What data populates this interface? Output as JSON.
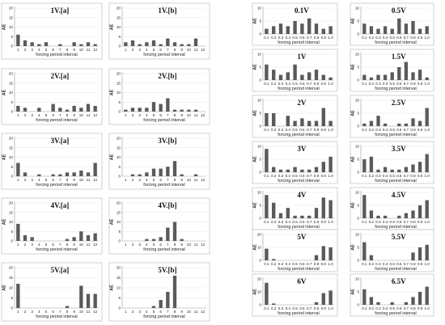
{
  "figure": {
    "left_group": {
      "xlabel": "forcing period interval",
      "ylabel": "AE",
      "yticks": [
        0,
        5,
        10,
        15,
        20
      ],
      "categories": [
        "1",
        "2",
        "3",
        "4",
        "5",
        "6",
        "7",
        "8",
        "9",
        "10",
        "11",
        "12"
      ]
    },
    "right_group": {
      "xlabel": "forcing period interval",
      "ylabel": "AE",
      "categories": [
        "0.1",
        "0.2",
        "0.3",
        "0.4",
        "0.5",
        "0.6",
        "0.7",
        "0.8",
        "0.9",
        "1.0"
      ]
    }
  },
  "chart_data": [
    {
      "type": "bar",
      "title": "1V.[a]",
      "ylim": [
        0,
        20
      ],
      "yticks": [
        "0",
        "5",
        "10",
        "15",
        "20"
      ],
      "categories": [
        "1",
        "2",
        "3",
        "4",
        "5",
        "6",
        "7",
        "8",
        "9",
        "10",
        "11",
        "12"
      ],
      "values": [
        6,
        3,
        2,
        1,
        2,
        0,
        1,
        0,
        2,
        1,
        2,
        1
      ]
    },
    {
      "type": "bar",
      "title": "2V.[a]",
      "ylim": [
        0,
        20
      ],
      "yticks": [
        "0",
        "5",
        "10",
        "15",
        "20"
      ],
      "categories": [
        "1",
        "2",
        "3",
        "4",
        "5",
        "6",
        "7",
        "8",
        "9",
        "10",
        "11",
        "12"
      ],
      "values": [
        3,
        2,
        0,
        2,
        0,
        4,
        2,
        1,
        3,
        2,
        4,
        3
      ]
    },
    {
      "type": "bar",
      "title": "3V.[a]",
      "ylim": [
        0,
        20
      ],
      "yticks": [
        "0",
        "5",
        "10",
        "15",
        "20"
      ],
      "categories": [
        "1",
        "2",
        "3",
        "4",
        "5",
        "6",
        "7",
        "8",
        "9",
        "10",
        "11",
        "12"
      ],
      "values": [
        7,
        2,
        0,
        1,
        0,
        1,
        1,
        2,
        2,
        3,
        2,
        7
      ]
    },
    {
      "type": "bar",
      "title": "4V.[a]",
      "ylim": [
        0,
        20
      ],
      "yticks": [
        "0",
        "5",
        "10",
        "15",
        "20"
      ],
      "categories": [
        "1",
        "2",
        "3",
        "4",
        "5",
        "6",
        "7",
        "8",
        "9",
        "10",
        "11",
        "12"
      ],
      "values": [
        9,
        3,
        2,
        0,
        0,
        0,
        0,
        1,
        2,
        5,
        3,
        4
      ]
    },
    {
      "type": "bar",
      "title": "5V.[a]",
      "ylim": [
        0,
        20
      ],
      "yticks": [
        "0",
        "5",
        "10",
        "15",
        "20"
      ],
      "categories": [
        "1",
        "2",
        "3",
        "4",
        "5",
        "6",
        "7",
        "8",
        "9",
        "10",
        "11",
        "12"
      ],
      "values": [
        12,
        0,
        0,
        0,
        0,
        0,
        0,
        1,
        0,
        11,
        7,
        7
      ]
    },
    {
      "type": "bar",
      "title": "1V.[b]",
      "ylim": [
        0,
        20
      ],
      "yticks": [
        "0",
        "5",
        "10",
        "15",
        "20"
      ],
      "categories": [
        "1",
        "2",
        "3",
        "4",
        "5",
        "6",
        "7",
        "8",
        "9",
        "10",
        "11",
        "12"
      ],
      "values": [
        2,
        3,
        1,
        2,
        3,
        1,
        4,
        2,
        1,
        1,
        4,
        0
      ]
    },
    {
      "type": "bar",
      "title": "2V.[b]",
      "ylim": [
        0,
        20
      ],
      "yticks": [
        "0",
        "5",
        "10",
        "15",
        "20"
      ],
      "categories": [
        "1",
        "2",
        "3",
        "4",
        "5",
        "6",
        "7",
        "8",
        "9",
        "10",
        "11",
        "12"
      ],
      "values": [
        1,
        2,
        2,
        2,
        5,
        4,
        7,
        1,
        1,
        1,
        1,
        0
      ]
    },
    {
      "type": "bar",
      "title": "3V.[b]",
      "ylim": [
        0,
        20
      ],
      "yticks": [
        "0",
        "5",
        "10",
        "15",
        "20"
      ],
      "categories": [
        "1",
        "2",
        "3",
        "4",
        "5",
        "6",
        "7",
        "8",
        "9",
        "10",
        "11",
        "12"
      ],
      "values": [
        0,
        1,
        1,
        2,
        4,
        4,
        5,
        8,
        1,
        0,
        1,
        0
      ]
    },
    {
      "type": "bar",
      "title": "4V.[b]",
      "ylim": [
        0,
        20
      ],
      "yticks": [
        "0",
        "5",
        "10",
        "15",
        "20"
      ],
      "categories": [
        "1",
        "2",
        "3",
        "4",
        "5",
        "6",
        "7",
        "8",
        "9",
        "10",
        "11",
        "12"
      ],
      "values": [
        0,
        0,
        0,
        1,
        1,
        2,
        7,
        10,
        1,
        0,
        0,
        0
      ]
    },
    {
      "type": "bar",
      "title": "5V.[b]",
      "ylim": [
        0,
        20
      ],
      "yticks": [
        "0",
        "5",
        "10",
        "15",
        "20"
      ],
      "categories": [
        "1",
        "2",
        "3",
        "4",
        "5",
        "6",
        "7",
        "8",
        "9",
        "10",
        "11",
        "12"
      ],
      "values": [
        0,
        0,
        0,
        0,
        1,
        4,
        8,
        16,
        0,
        0,
        0,
        0
      ]
    },
    {
      "type": "bar",
      "title": "0.1V",
      "ylim": [
        0,
        10
      ],
      "yticks": [
        "0",
        "5",
        "10"
      ],
      "categories": [
        "0.1",
        "0.2",
        "0.3",
        "0.4",
        "0.5",
        "0.6",
        "0.7",
        "0.8",
        "0.9",
        "1.0"
      ],
      "values": [
        2,
        3,
        4,
        3,
        5,
        4,
        6,
        4,
        2,
        3
      ]
    },
    {
      "type": "bar",
      "title": "1V",
      "ylim": [
        0,
        10
      ],
      "yticks": [
        "0",
        "5",
        "10"
      ],
      "categories": [
        "0.1",
        "0.2",
        "0.3",
        "0.4",
        "0.5",
        "0.6",
        "0.7",
        "0.8",
        "0.9",
        "1.0"
      ],
      "values": [
        6,
        4,
        2,
        3,
        6,
        2,
        3,
        4,
        2,
        1
      ]
    },
    {
      "type": "bar",
      "title": "2V",
      "ylim": [
        0,
        10
      ],
      "yticks": [
        "0",
        "5",
        "10"
      ],
      "categories": [
        "0.1",
        "0.2",
        "0.3",
        "0.4",
        "0.5",
        "0.6",
        "0.7",
        "0.8",
        "0.9",
        "1.0"
      ],
      "values": [
        5,
        5,
        0,
        4,
        2,
        3,
        2,
        2,
        7,
        2
      ]
    },
    {
      "type": "bar",
      "title": "3V",
      "ylim": [
        0,
        10
      ],
      "yticks": [
        "0",
        "5",
        "10"
      ],
      "categories": [
        "0.1",
        "0.2",
        "0.3",
        "0.4",
        "0.5",
        "0.6",
        "0.7",
        "0.8",
        "0.9",
        "1.0"
      ],
      "values": [
        9,
        2,
        1,
        1,
        2,
        1,
        1,
        2,
        4,
        6
      ]
    },
    {
      "type": "bar",
      "title": "4V",
      "ylim": [
        0,
        10
      ],
      "yticks": [
        "0",
        "5",
        "10"
      ],
      "categories": [
        "0.1",
        "0.2",
        "0.3",
        "0.4",
        "0.5",
        "0.6",
        "0.7",
        "0.8",
        "0.9",
        "1.0"
      ],
      "values": [
        9,
        6,
        2,
        4,
        1,
        1,
        1,
        4,
        8,
        7
      ]
    },
    {
      "type": "bar",
      "title": "5V",
      "ylim": [
        0,
        20
      ],
      "yticks": [
        "0",
        "10",
        "20"
      ],
      "categories": [
        "0.1",
        "0.2",
        "0.3",
        "0.4",
        "0.5",
        "0.6",
        "0.7",
        "0.8",
        "0.9",
        "1.0"
      ],
      "values": [
        9,
        1,
        0,
        0,
        0,
        0,
        0,
        4,
        11,
        10
      ]
    },
    {
      "type": "bar",
      "title": "6V",
      "ylim": [
        0,
        20
      ],
      "yticks": [
        "0",
        "10",
        "20"
      ],
      "categories": [
        "0.1",
        "0.2",
        "0.3",
        "0.4",
        "0.5",
        "0.6",
        "0.7",
        "0.8",
        "0.9",
        "1.0"
      ],
      "values": [
        17,
        1,
        0,
        0,
        0,
        0,
        0,
        2,
        9,
        11
      ]
    },
    {
      "type": "bar",
      "title": "0.5V",
      "ylim": [
        0,
        10
      ],
      "yticks": [
        "0",
        "5",
        "10"
      ],
      "categories": [
        "0.1",
        "0.2",
        "0.3",
        "0.4",
        "0.5",
        "0.6",
        "0.7",
        "0.8",
        "0.9",
        "1.0"
      ],
      "values": [
        4,
        3,
        2,
        3,
        2,
        6,
        4,
        5,
        2,
        3
      ]
    },
    {
      "type": "bar",
      "title": "1.5V",
      "ylim": [
        0,
        10
      ],
      "yticks": [
        "0",
        "5",
        "10"
      ],
      "categories": [
        "0.1",
        "0.2",
        "0.3",
        "0.4",
        "0.5",
        "0.6",
        "0.7",
        "0.8",
        "0.9",
        "1.0"
      ],
      "values": [
        2,
        1,
        2,
        2,
        3,
        5,
        7,
        3,
        4,
        1
      ]
    },
    {
      "type": "bar",
      "title": "2.5V",
      "ylim": [
        0,
        10
      ],
      "yticks": [
        "0",
        "5",
        "10"
      ],
      "categories": [
        "0.1",
        "0.2",
        "0.3",
        "0.4",
        "0.5",
        "0.6",
        "0.7",
        "0.8",
        "0.9",
        "1.0"
      ],
      "values": [
        1,
        2,
        4,
        1,
        0,
        1,
        1,
        3,
        2,
        7
      ]
    },
    {
      "type": "bar",
      "title": "3.5V",
      "ylim": [
        0,
        10
      ],
      "yticks": [
        "0",
        "5",
        "10"
      ],
      "categories": [
        "0.1",
        "0.2",
        "0.3",
        "0.4",
        "0.5",
        "0.6",
        "0.7",
        "0.8",
        "0.9",
        "1.0"
      ],
      "values": [
        5,
        6,
        1,
        2,
        1,
        1,
        2,
        3,
        4,
        7
      ]
    },
    {
      "type": "bar",
      "title": "4.5V",
      "ylim": [
        0,
        10
      ],
      "yticks": [
        "0",
        "5",
        "10"
      ],
      "categories": [
        "0.1",
        "0.2",
        "0.3",
        "0.4",
        "0.5",
        "0.6",
        "0.7",
        "0.8",
        "0.9",
        "1.0"
      ],
      "values": [
        9,
        3,
        1,
        1,
        0,
        1,
        2,
        3,
        5,
        7
      ]
    },
    {
      "type": "bar",
      "title": "5.5V",
      "ylim": [
        0,
        10
      ],
      "yticks": [
        "0",
        "5",
        "10"
      ],
      "categories": [
        "0.1",
        "0.2",
        "0.3",
        "0.4",
        "0.5",
        "0.6",
        "0.7",
        "0.8",
        "0.9",
        "1.0"
      ],
      "values": [
        7,
        2,
        0,
        0,
        0,
        0,
        0,
        3,
        5,
        6
      ]
    },
    {
      "type": "bar",
      "title": "6.5V",
      "ylim": [
        0,
        10
      ],
      "yticks": [
        "0",
        "5",
        "10"
      ],
      "categories": [
        "0.1",
        "0.2",
        "0.3",
        "0.4",
        "0.5",
        "0.6",
        "0.7",
        "0.8",
        "0.9",
        "1.0"
      ],
      "values": [
        6,
        3,
        1,
        0,
        1,
        0,
        1,
        3,
        5,
        7
      ]
    }
  ]
}
